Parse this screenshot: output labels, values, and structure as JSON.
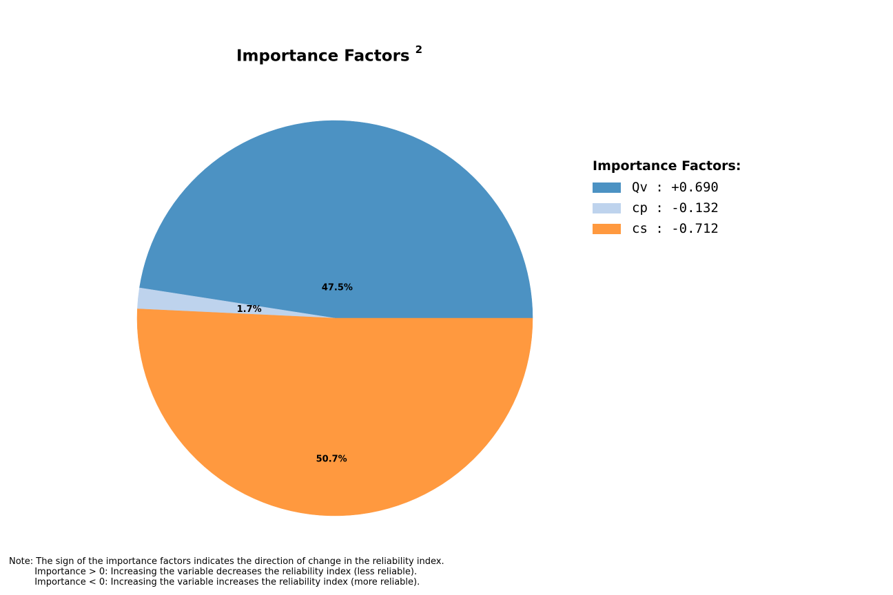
{
  "chart_data": {
    "type": "pie",
    "title": "Importance Factors",
    "title_superscript": "2",
    "start_angle_deg": 0,
    "direction": "counterclockwise",
    "slices": [
      {
        "name": "Qv",
        "importance": 0.69,
        "percent": 47.5,
        "label": "47.5%",
        "color": "#4c92c3"
      },
      {
        "name": "cp",
        "importance": -0.132,
        "percent": 1.7,
        "label": "1.7%",
        "color": "#bed3ed"
      },
      {
        "name": "cs",
        "importance": -0.712,
        "percent": 50.7,
        "label": "50.7%",
        "color": "#ff993f"
      }
    ],
    "legend": {
      "title": "Importance Factors:",
      "placement": "right",
      "entries": [
        "Qv : +0.690",
        "cp : -0.132",
        "cs : -0.712"
      ]
    },
    "note": [
      "Note: The sign of the importance factors indicates the direction of change in the reliability index.",
      "         Importance > 0: Increasing the variable decreases the reliability index (less reliable).",
      "         Importance < 0: Increasing the variable increases the reliability index (more reliable)."
    ]
  }
}
